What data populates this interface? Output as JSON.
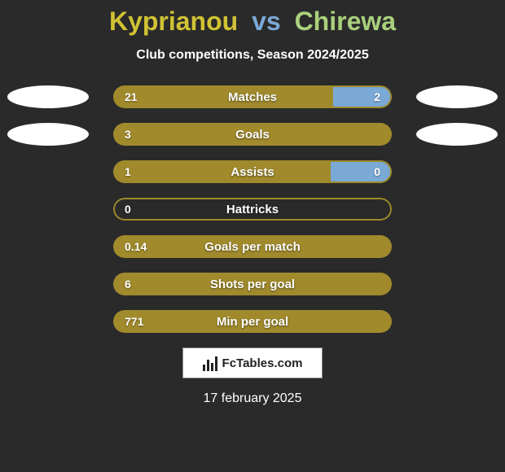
{
  "header": {
    "player1": "Kyprianou",
    "vs": "vs",
    "player2": "Chirewa",
    "player1_color": "#d0c233",
    "vs_color": "#7aa9d6",
    "player2_color": "#a9d07c",
    "subtitle": "Club competitions, Season 2024/2025"
  },
  "colors": {
    "left_fill": "#a08a2c",
    "right_fill": "#7aa9d6",
    "empty_bg": "#2a2a2a",
    "border": "#a08a2c",
    "oval": "#ffffff"
  },
  "stats": [
    {
      "label": "Matches",
      "left_val": "21",
      "right_val": "2",
      "left_pct": 79,
      "right_pct": 21,
      "show_right": true,
      "show_ovals": true
    },
    {
      "label": "Goals",
      "left_val": "3",
      "right_val": "",
      "left_pct": 100,
      "right_pct": 0,
      "show_right": false,
      "show_ovals": true
    },
    {
      "label": "Assists",
      "left_val": "1",
      "right_val": "0",
      "left_pct": 78,
      "right_pct": 22,
      "show_right": true,
      "show_ovals": false
    },
    {
      "label": "Hattricks",
      "left_val": "0",
      "right_val": "",
      "left_pct": 0,
      "right_pct": 0,
      "show_right": false,
      "show_ovals": false
    },
    {
      "label": "Goals per match",
      "left_val": "0.14",
      "right_val": "",
      "left_pct": 100,
      "right_pct": 0,
      "show_right": false,
      "show_ovals": false
    },
    {
      "label": "Shots per goal",
      "left_val": "6",
      "right_val": "",
      "left_pct": 100,
      "right_pct": 0,
      "show_right": false,
      "show_ovals": false
    },
    {
      "label": "Min per goal",
      "left_val": "771",
      "right_val": "",
      "left_pct": 100,
      "right_pct": 0,
      "show_right": false,
      "show_ovals": false
    }
  ],
  "footer": {
    "logo_text": "FcTables.com",
    "date": "17 february 2025"
  }
}
